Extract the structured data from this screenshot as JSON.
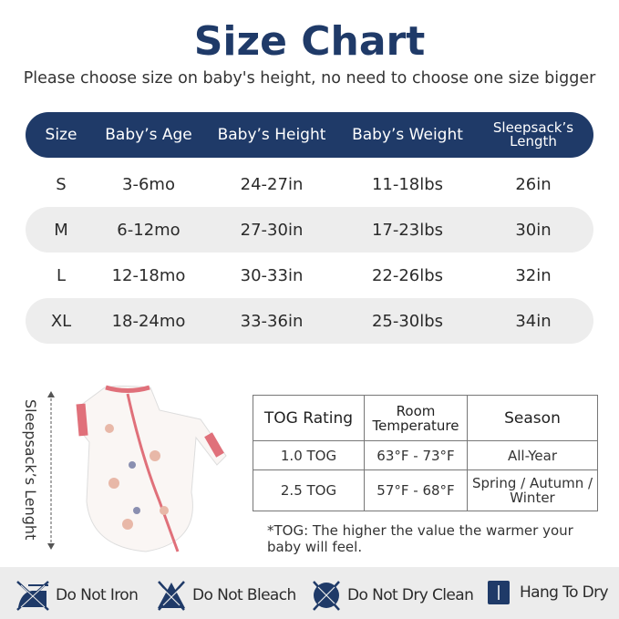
{
  "title": "Size Chart",
  "subtitle": "Please choose size on baby's height, no need to choose one size bigger",
  "size_table": {
    "headers": [
      "Size",
      "Baby’s Age",
      "Baby’s Height",
      "Baby’s Weight",
      "Sleepsack’s Length"
    ],
    "rows": [
      [
        "S",
        "3-6mo",
        "24-27in",
        "11-18lbs",
        "26in"
      ],
      [
        "M",
        "6-12mo",
        "27-30in",
        "17-23lbs",
        "30in"
      ],
      [
        "L",
        "12-18mo",
        "30-33in",
        "22-26lbs",
        "32in"
      ],
      [
        "XL",
        "18-24mo",
        "33-36in",
        "25-30lbs",
        "34in"
      ]
    ]
  },
  "length_label": "Sleepsack’s Lenght",
  "tog_table": {
    "headers": [
      "TOG Rating",
      "Room Temperature",
      "Season"
    ],
    "rows": [
      [
        "1.0 TOG",
        "63°F  -  73°F",
        "All-Year"
      ],
      [
        "2.5 TOG",
        "57°F  -  68°F",
        "Spring / Autumn / Winter"
      ]
    ]
  },
  "tog_note": "*TOG: The higher the value the warmer your baby will feel.",
  "care": [
    {
      "icon": "no-iron-icon",
      "label": "Do Not Iron"
    },
    {
      "icon": "no-bleach-icon",
      "label": "Do Not Bleach"
    },
    {
      "icon": "no-dry-clean-icon",
      "label": "Do Not Dry Clean"
    },
    {
      "icon": "hang-dry-icon",
      "label": "Hang To Dry"
    }
  ],
  "colors": {
    "navy": "#1f3a68",
    "pink": "#e0707a",
    "band": "#ececec"
  }
}
